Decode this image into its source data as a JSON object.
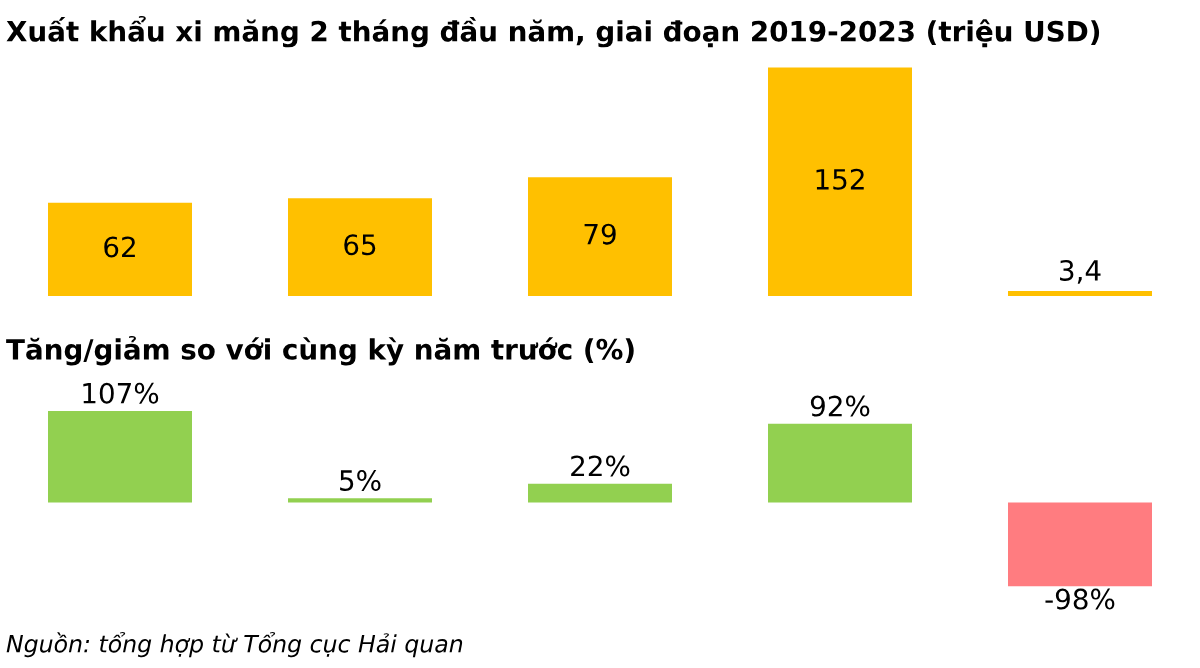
{
  "chart_data": [
    {
      "type": "bar",
      "title": "Xuất khẩu xi măng 2 tháng đầu năm, giai đoạn 2019-2023 (triệu USD)",
      "categories": [
        null,
        null,
        null,
        null,
        null
      ],
      "values": [
        62,
        65,
        79,
        152,
        3.4
      ],
      "color": "#ffc000",
      "value_labels": [
        "62",
        "65",
        "79",
        "152",
        "3,4"
      ]
    },
    {
      "type": "bar",
      "title": "Tăng/giảm so với cùng kỳ năm trước (%)",
      "categories": [
        null,
        null,
        null,
        null,
        null
      ],
      "values": [
        107,
        5,
        22,
        92,
        -98
      ],
      "colors": [
        "#92d050",
        "#92d050",
        "#92d050",
        "#92d050",
        "#ff7c80"
      ],
      "value_labels": [
        "107%",
        "5%",
        "22%",
        "92%",
        "-98%"
      ],
      "annotations": [
        "Nguồn: tổng hợp từ Tổng cục Hải quan"
      ]
    }
  ]
}
